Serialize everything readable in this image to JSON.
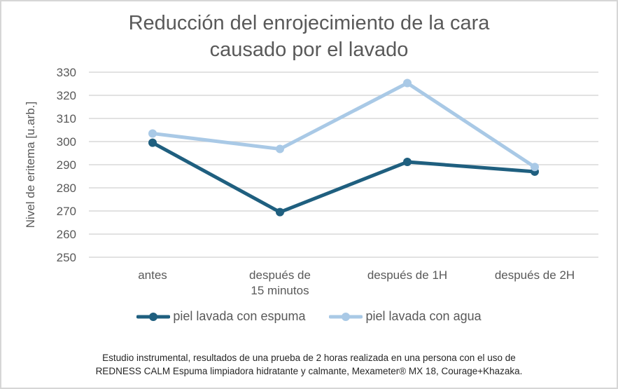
{
  "chart_data": {
    "type": "line",
    "title": [
      "Reducción del enrojecimiento de la cara",
      "causado por el lavado"
    ],
    "xlabel": "",
    "ylabel": "Nivel de eritema [u.arb.]",
    "categories": [
      [
        "antes"
      ],
      [
        "después de",
        "15 minutos"
      ],
      [
        "después de 1H"
      ],
      [
        "después de 2H"
      ]
    ],
    "ylim": [
      250,
      330
    ],
    "yticks": [
      250,
      260,
      270,
      280,
      290,
      300,
      310,
      320,
      330
    ],
    "grid": true,
    "legend_position": "bottom",
    "series": [
      {
        "name": "piel lavada con espuma",
        "color": "#1f5f7f",
        "values": [
          299.5,
          269.5,
          291.2,
          287.0
        ]
      },
      {
        "name": "piel lavada con agua",
        "color": "#a9c9e6",
        "values": [
          303.5,
          296.8,
          325.3,
          289.0
        ]
      }
    ]
  },
  "footnote": [
    "Estudio instrumental, resultados de una prueba de 2 horas realizada en una persona con el uso de",
    "REDNESS CALM Espuma limpiadora hidratante y calmante, Mexameter® MX 18, Courage+Khazaka."
  ]
}
